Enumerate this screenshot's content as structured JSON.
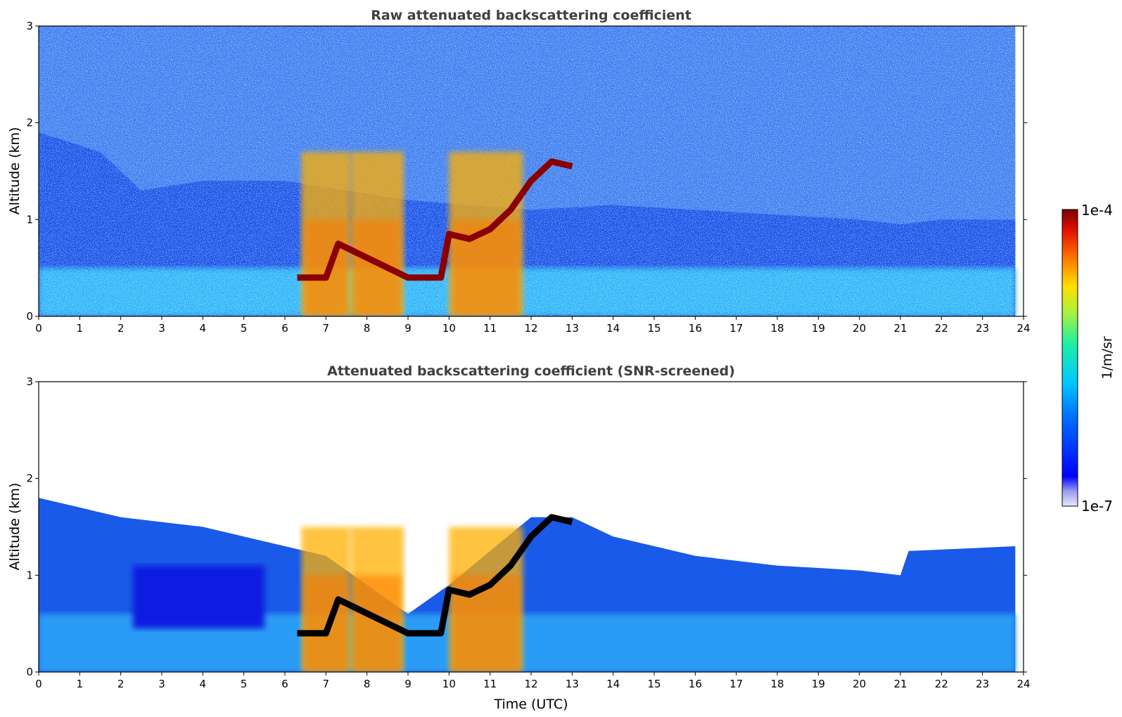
{
  "chart_data": [
    {
      "type": "heatmap",
      "title": "Raw attenuated backscattering coefficient",
      "xlabel": "",
      "ylabel": "Altitude (km)",
      "xlim": [
        0,
        24
      ],
      "ylim": [
        0,
        3
      ],
      "xticks": [
        0,
        1,
        2,
        3,
        4,
        5,
        6,
        7,
        8,
        9,
        10,
        11,
        12,
        13,
        14,
        15,
        16,
        17,
        18,
        19,
        20,
        21,
        22,
        23,
        24
      ],
      "yticks": [
        0,
        1,
        2,
        3
      ],
      "colorbar": {
        "label": "1/m/sr",
        "min_label": "1e-7",
        "max_label": "1e-4",
        "colormap": "jet",
        "scale": "log"
      },
      "features": {
        "boundary_layer_top_km": [
          [
            0,
            1.9
          ],
          [
            1.5,
            1.7
          ],
          [
            2.5,
            1.3
          ],
          [
            4,
            1.4
          ],
          [
            6,
            1.4
          ],
          [
            9,
            1.2
          ],
          [
            12,
            1.1
          ],
          [
            14,
            1.15
          ],
          [
            16,
            1.1
          ],
          [
            18,
            1.05
          ],
          [
            20,
            1.0
          ],
          [
            21,
            0.95
          ],
          [
            22,
            1.0
          ],
          [
            23.8,
            1.0
          ]
        ],
        "cloud_base_km": [
          [
            6.3,
            0.4
          ],
          [
            7.0,
            0.4
          ],
          [
            7.3,
            0.75
          ],
          [
            9.0,
            0.4
          ],
          [
            9.8,
            0.4
          ],
          [
            10.0,
            0.85
          ],
          [
            10.5,
            0.8
          ],
          [
            11.0,
            0.9
          ],
          [
            11.5,
            1.1
          ],
          [
            12.0,
            1.4
          ],
          [
            12.5,
            1.6
          ],
          [
            13.0,
            1.55
          ]
        ],
        "rain_shafts_utc": [
          [
            6.4,
            7.6
          ],
          [
            7.6,
            8.9
          ],
          [
            10.0,
            11.8
          ]
        ]
      }
    },
    {
      "type": "heatmap",
      "title": "Attenuated backscattering coefficient (SNR-screened)",
      "xlabel": "Time (UTC)",
      "ylabel": "Altitude (km)",
      "xlim": [
        0,
        24
      ],
      "ylim": [
        0,
        3
      ],
      "xticks": [
        0,
        1,
        2,
        3,
        4,
        5,
        6,
        7,
        8,
        9,
        10,
        11,
        12,
        13,
        14,
        15,
        16,
        17,
        18,
        19,
        20,
        21,
        22,
        23,
        24
      ],
      "yticks": [
        0,
        1,
        2,
        3
      ],
      "features": {
        "screened_top_km": [
          [
            0,
            1.8
          ],
          [
            2,
            1.6
          ],
          [
            4,
            1.5
          ],
          [
            6,
            1.3
          ],
          [
            7,
            1.2
          ],
          [
            9,
            0.6
          ],
          [
            10,
            0.9
          ],
          [
            12,
            1.6
          ],
          [
            13,
            1.6
          ],
          [
            14,
            1.4
          ],
          [
            15,
            1.3
          ],
          [
            16,
            1.2
          ],
          [
            18,
            1.1
          ],
          [
            20,
            1.05
          ],
          [
            21,
            1.0
          ],
          [
            21.2,
            1.25
          ],
          [
            23.8,
            1.3
          ]
        ]
      }
    }
  ]
}
